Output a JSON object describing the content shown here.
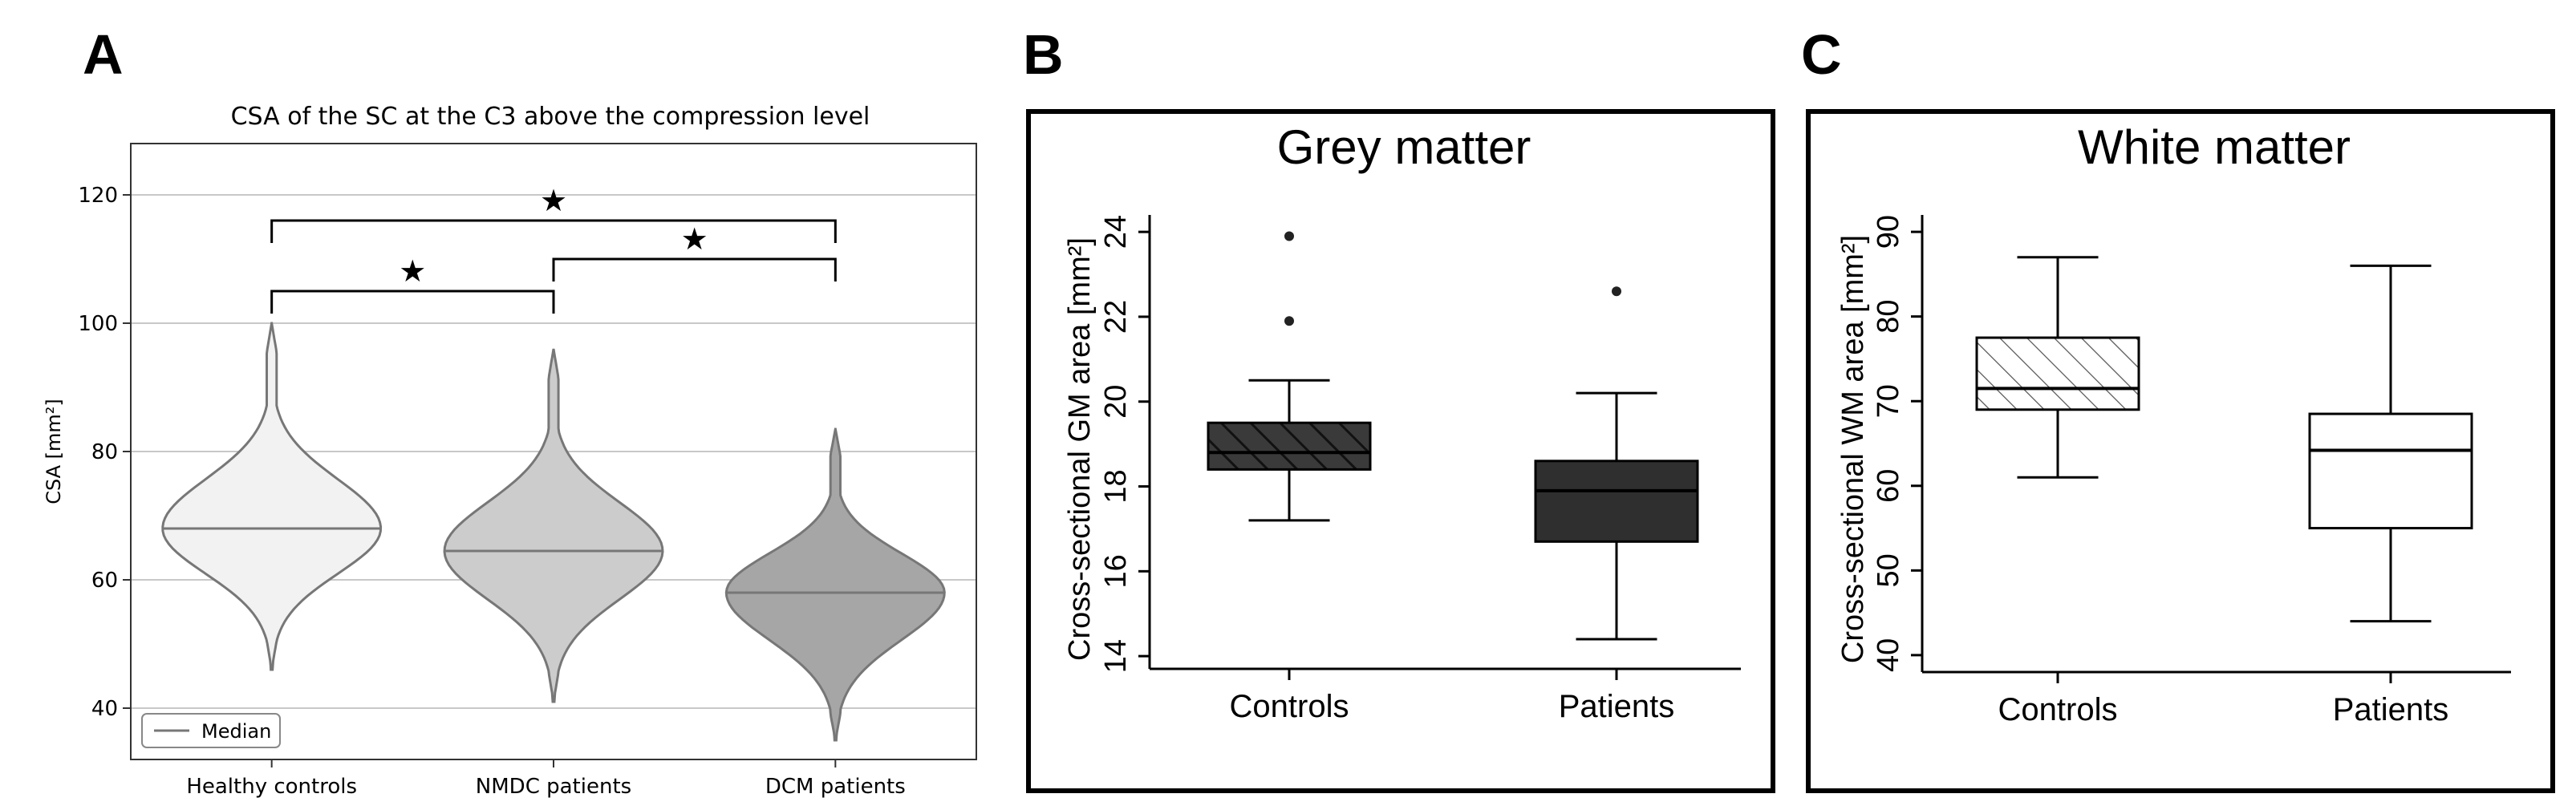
{
  "panels": {
    "a": {
      "letter": "A"
    },
    "b": {
      "letter": "B"
    },
    "c": {
      "letter": "C"
    }
  },
  "chart_data": [
    {
      "type": "violin",
      "title": "CSA of the SC at the C3 above the compression level",
      "xlabel": "",
      "ylabel": "CSA [mm²]",
      "ylim": [
        32,
        128
      ],
      "yticks": [
        40,
        60,
        80,
        100,
        120
      ],
      "grid": "horizontal",
      "legend": {
        "position": "bottom-left",
        "entries": [
          "Median"
        ]
      },
      "categories": [
        "Healthy controls",
        "NMDC patients",
        "DCM patients"
      ],
      "series": [
        {
          "category": "Healthy controls",
          "median": 68,
          "min": 46,
          "max": 100,
          "color": "#f2f2f2"
        },
        {
          "category": "NMDC patients",
          "median": 64.5,
          "min": 41,
          "max": 96,
          "color": "#cccccc"
        },
        {
          "category": "DCM patients",
          "median": 58,
          "min": 35,
          "max": 83.5,
          "color": "#a6a6a6"
        }
      ],
      "significance": [
        {
          "from": "Healthy controls",
          "to": "NMDC patients",
          "level": 105,
          "marker": "★"
        },
        {
          "from": "NMDC patients",
          "to": "DCM patients",
          "level": 110,
          "marker": "★"
        },
        {
          "from": "Healthy controls",
          "to": "DCM patients",
          "level": 116,
          "marker": "★"
        }
      ]
    },
    {
      "type": "box",
      "title": "Grey matter",
      "ylabel": "Cross-sectional GM area [mm²]",
      "ylim": [
        13.7,
        24.4
      ],
      "yticks": [
        14,
        16,
        18,
        20,
        22,
        24
      ],
      "categories": [
        "Controls",
        "Patients"
      ],
      "series": [
        {
          "category": "Controls",
          "whisker_low": 17.2,
          "q1": 18.4,
          "median": 18.8,
          "q3": 19.5,
          "whisker_high": 20.5,
          "outliers": [
            21.9,
            23.9
          ],
          "fill": "hatched-dark"
        },
        {
          "category": "Patients",
          "whisker_low": 14.4,
          "q1": 16.7,
          "median": 17.9,
          "q3": 18.6,
          "whisker_high": 20.2,
          "outliers": [
            22.6
          ],
          "fill": "dark"
        }
      ]
    },
    {
      "type": "box",
      "title": "White matter",
      "ylabel": "Cross-sectional WM area [mm²]",
      "ylim": [
        38,
        92
      ],
      "yticks": [
        40,
        50,
        60,
        70,
        80,
        90
      ],
      "categories": [
        "Controls",
        "Patients"
      ],
      "series": [
        {
          "category": "Controls",
          "whisker_low": 61,
          "q1": 69,
          "median": 71.5,
          "q3": 77.5,
          "whisker_high": 87,
          "outliers": [],
          "fill": "hatched-light"
        },
        {
          "category": "Patients",
          "whisker_low": 44,
          "q1": 55,
          "median": 64.2,
          "q3": 68.5,
          "whisker_high": 86,
          "outliers": [],
          "fill": "white"
        }
      ]
    }
  ]
}
